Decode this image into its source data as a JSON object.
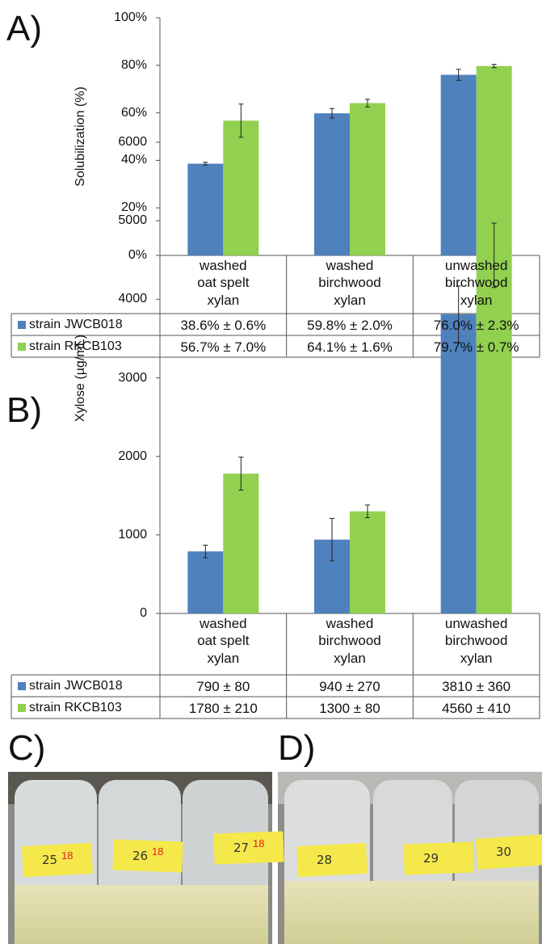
{
  "chart_data": [
    {
      "type": "bar",
      "panel": "A)",
      "y_label": "Solubilization (%)",
      "categories": [
        "washed\noat spelt\nxylan",
        "washed\nbirchwood\nxylan",
        "unwashed\nbirchwood\nxylan"
      ],
      "series": [
        {
          "name": "strain JWCB018",
          "color": "#4f81bd",
          "values": [
            38.6,
            59.8,
            76.0
          ],
          "errors": [
            0.6,
            2.0,
            2.3
          ],
          "value_labels": [
            "38.6% ± 0.6%",
            "59.8% ± 2.0%",
            "76.0% ± 2.3%"
          ]
        },
        {
          "name": "strain RKCB103",
          "color": "#92d050",
          "values": [
            56.7,
            64.1,
            79.7
          ],
          "errors": [
            7.0,
            1.6,
            0.7
          ],
          "value_labels": [
            "56.7% ± 7.0%",
            "64.1% ± 1.6%",
            "79.7% ± 0.7%"
          ]
        }
      ],
      "ylim": [
        0,
        100
      ],
      "yticks": [
        {
          "value": 0,
          "label": "0%"
        },
        {
          "value": 20,
          "label": "20%"
        },
        {
          "value": 40,
          "label": "40%"
        },
        {
          "value": 60,
          "label": "60%"
        },
        {
          "value": 80,
          "label": "80%"
        },
        {
          "value": 100,
          "label": "100%"
        }
      ]
    },
    {
      "type": "bar",
      "panel": "B)",
      "y_label": "Xylose (µg/mL)",
      "categories": [
        "washed\noat spelt\nxylan",
        "washed\nbirchwood\nxylan",
        "unwashed\nbirchwood\nxylan"
      ],
      "series": [
        {
          "name": "strain JWCB018",
          "color": "#4f81bd",
          "values": [
            790,
            940,
            3810
          ],
          "errors": [
            80,
            270,
            360
          ],
          "value_labels": [
            "790 ± 80",
            "940 ± 270",
            "3810 ± 360"
          ]
        },
        {
          "name": "strain RKCB103",
          "color": "#92d050",
          "values": [
            1780,
            1300,
            4560
          ],
          "errors": [
            210,
            80,
            410
          ],
          "value_labels": [
            "1780 ± 210",
            "1300 ± 80",
            "4560 ± 410"
          ]
        }
      ],
      "ylim": [
        0,
        6000
      ],
      "yticks": [
        0,
        1000,
        2000,
        3000,
        4000,
        5000,
        6000
      ]
    }
  ],
  "photos": [
    {
      "panel": "C)",
      "tags": [
        {
          "number": "25",
          "mark": "18"
        },
        {
          "number": "26",
          "mark": "18"
        },
        {
          "number": "27",
          "mark": "18"
        }
      ]
    },
    {
      "panel": "D)",
      "tags": [
        {
          "number": "28"
        },
        {
          "number": "29"
        },
        {
          "number": "30"
        }
      ]
    }
  ]
}
